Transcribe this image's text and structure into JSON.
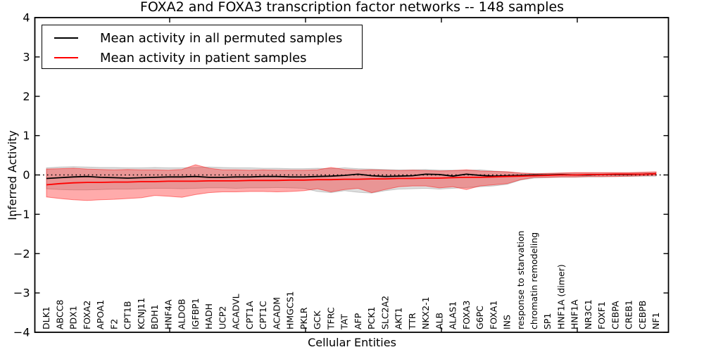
{
  "figure": {
    "title": "FOXA2 and FOXA3 transcription factor networks -- 148 samples",
    "xlabel": "Cellular Entities",
    "ylabel": "Inferred Activity"
  },
  "legend": {
    "items": [
      {
        "label": "Mean activity in all permuted samples",
        "color": "#000000"
      },
      {
        "label": "Mean activity in patient samples",
        "color": "#ff0000"
      }
    ]
  },
  "chart_data": {
    "type": "line",
    "title": "FOXA2 and FOXA3 transcription factor networks -- 148 samples",
    "xlabel": "Cellular Entities",
    "ylabel": "Inferred Activity",
    "ylim": [
      -4,
      4
    ],
    "yticks": [
      -4,
      -3,
      -2,
      -1,
      0,
      1,
      2,
      3,
      4
    ],
    "grid": false,
    "zero_reference_line": "black dotted at y=0",
    "legend_position": "upper left",
    "colors": {
      "permuted_line": "#000000",
      "patient_line": "#ff0000",
      "permuted_band_fill": "rgba(0,0,0,0.13)",
      "permuted_band_edge": "rgba(0,0,0,0.18)",
      "patient_band_fill": "rgba(255,0,0,0.33)",
      "patient_band_edge": "rgba(255,0,0,0.45)"
    },
    "categories": [
      "DLK1",
      "ABCC8",
      "PDX1",
      "FOXA2",
      "APOA1",
      "F2",
      "CPT1B",
      "KCNJ11",
      "BDH1",
      "HNF4A",
      "ALDOB",
      "IGFBP1",
      "HADH",
      "UCP2",
      "ACADVL",
      "CPT1A",
      "CPT1C",
      "ACADM",
      "HMGCS1",
      "PKLR",
      "GCK",
      "TFRC",
      "TAT",
      "AFP",
      "PCK1",
      "SLC2A2",
      "AKT1",
      "TTR",
      "NKX2-1",
      "ALB",
      "ALAS1",
      "FOXA3",
      "G6PC",
      "FOXA1",
      "INS",
      "response to starvation",
      "chromatin remodeling",
      "SP1",
      "HNF1A (dimer)",
      "HNF1A",
      "NR3C1",
      "FOXF1",
      "CEBPA",
      "CREB1",
      "CEBPB",
      "NF1"
    ],
    "series": [
      {
        "name": "Mean activity in all permuted samples",
        "color": "#000000",
        "values": [
          -0.09,
          -0.07,
          -0.05,
          -0.04,
          -0.06,
          -0.07,
          -0.08,
          -0.07,
          -0.06,
          -0.05,
          -0.05,
          -0.04,
          -0.06,
          -0.06,
          -0.05,
          -0.05,
          -0.04,
          -0.04,
          -0.05,
          -0.05,
          -0.04,
          -0.03,
          -0.01,
          0.02,
          -0.02,
          -0.04,
          -0.03,
          -0.02,
          0.02,
          0.01,
          -0.03,
          0.02,
          -0.01,
          -0.03,
          -0.02,
          -0.01,
          0.0,
          0.0,
          0.01,
          0.0,
          0.0,
          0.01,
          0.01,
          0.01,
          0.02,
          0.03
        ]
      },
      {
        "name": "Mean activity in patient samples",
        "color": "#ff0000",
        "values": [
          -0.25,
          -0.22,
          -0.2,
          -0.19,
          -0.19,
          -0.18,
          -0.18,
          -0.17,
          -0.17,
          -0.16,
          -0.16,
          -0.16,
          -0.15,
          -0.15,
          -0.15,
          -0.14,
          -0.14,
          -0.14,
          -0.13,
          -0.13,
          -0.12,
          -0.12,
          -0.11,
          -0.11,
          -0.1,
          -0.1,
          -0.09,
          -0.09,
          -0.08,
          -0.08,
          -0.07,
          -0.06,
          -0.06,
          -0.05,
          -0.04,
          -0.03,
          -0.02,
          -0.01,
          0.0,
          0.0,
          0.01,
          0.01,
          0.02,
          0.02,
          0.02,
          0.03
        ]
      }
    ],
    "bands": [
      {
        "name": "permuted samples range",
        "fill": "rgba(0,0,0,0.13)",
        "edge": "rgba(0,0,0,0.18)",
        "upper": [
          0.18,
          0.2,
          0.21,
          0.2,
          0.19,
          0.19,
          0.18,
          0.18,
          0.19,
          0.18,
          0.18,
          0.19,
          0.2,
          0.19,
          0.18,
          0.18,
          0.17,
          0.17,
          0.16,
          0.16,
          0.17,
          0.16,
          0.18,
          0.16,
          0.15,
          0.14,
          0.13,
          0.13,
          0.14,
          0.12,
          0.12,
          0.12,
          0.13,
          0.1,
          0.08,
          0.05,
          0.04,
          0.04,
          0.05,
          0.05,
          0.05,
          0.05,
          0.05,
          0.05,
          0.06,
          0.06
        ],
        "lower": [
          -0.35,
          -0.37,
          -0.38,
          -0.38,
          -0.37,
          -0.36,
          -0.36,
          -0.35,
          -0.34,
          -0.34,
          -0.35,
          -0.34,
          -0.33,
          -0.33,
          -0.34,
          -0.33,
          -0.33,
          -0.32,
          -0.33,
          -0.34,
          -0.42,
          -0.45,
          -0.4,
          -0.44,
          -0.46,
          -0.4,
          -0.36,
          -0.35,
          -0.34,
          -0.36,
          -0.34,
          -0.32,
          -0.3,
          -0.28,
          -0.24,
          -0.13,
          -0.08,
          -0.07,
          -0.06,
          -0.06,
          -0.05,
          -0.05,
          -0.04,
          -0.04,
          -0.03,
          -0.03
        ]
      },
      {
        "name": "patient samples range",
        "fill": "rgba(255,0,0,0.33)",
        "edge": "rgba(255,0,0,0.45)",
        "upper": [
          0.15,
          0.16,
          0.17,
          0.15,
          0.14,
          0.13,
          0.14,
          0.13,
          0.13,
          0.12,
          0.14,
          0.26,
          0.17,
          0.13,
          0.13,
          0.12,
          0.13,
          0.12,
          0.12,
          0.12,
          0.13,
          0.19,
          0.14,
          0.12,
          0.13,
          0.12,
          0.11,
          0.12,
          0.11,
          0.1,
          0.11,
          0.13,
          0.1,
          0.09,
          0.08,
          0.05,
          0.03,
          0.04,
          0.05,
          0.06,
          0.06,
          0.06,
          0.06,
          0.06,
          0.07,
          0.08
        ],
        "lower": [
          -0.56,
          -0.6,
          -0.63,
          -0.65,
          -0.63,
          -0.62,
          -0.6,
          -0.58,
          -0.52,
          -0.54,
          -0.57,
          -0.5,
          -0.45,
          -0.43,
          -0.43,
          -0.42,
          -0.42,
          -0.43,
          -0.42,
          -0.4,
          -0.35,
          -0.43,
          -0.37,
          -0.34,
          -0.45,
          -0.37,
          -0.3,
          -0.28,
          -0.28,
          -0.33,
          -0.3,
          -0.37,
          -0.28,
          -0.25,
          -0.22,
          -0.12,
          -0.06,
          -0.06,
          -0.05,
          -0.05,
          -0.04,
          -0.04,
          -0.04,
          -0.03,
          -0.02,
          -0.01
        ]
      }
    ]
  }
}
